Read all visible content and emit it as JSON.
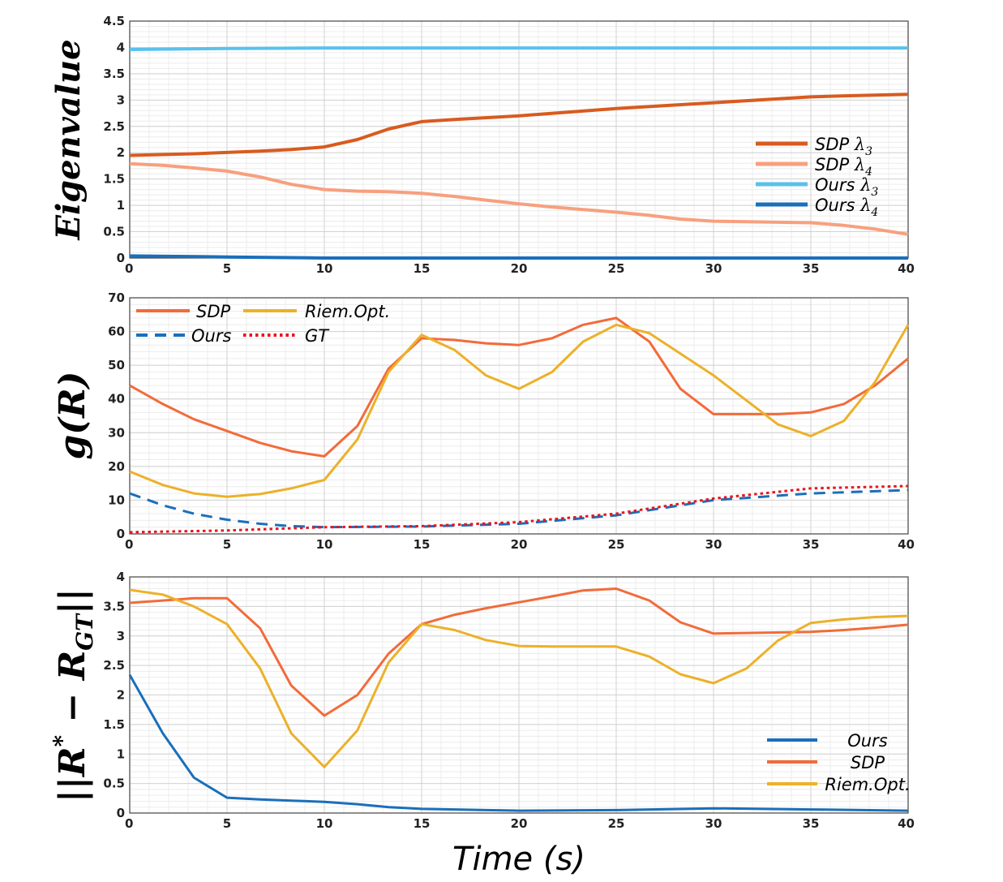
{
  "chart_data": [
    {
      "type": "line",
      "ylabel": "Eigenvalue",
      "xlim": [
        0,
        40
      ],
      "ylim": [
        0,
        4.5
      ],
      "xticks": [
        "0",
        "5",
        "10",
        "15",
        "20",
        "25",
        "30",
        "35",
        "40"
      ],
      "yticks": [
        "0",
        "0.5",
        "1",
        "1.5",
        "2",
        "2.5",
        "3",
        "3.5",
        "4",
        "4.5"
      ],
      "grid": true,
      "legend_position": "right",
      "series": [
        {
          "name": "SDP λ3",
          "label": "SDP",
          "lambda": "λ",
          "sub": "3",
          "color": "#d85b1f",
          "dash": "solid",
          "x": [
            0,
            3.3,
            6.7,
            8.3,
            10,
            11.7,
            13.3,
            15,
            16.7,
            20,
            25,
            30,
            35,
            36.7,
            40
          ],
          "y": [
            1.95,
            1.98,
            2.03,
            2.06,
            2.11,
            2.25,
            2.45,
            2.59,
            2.63,
            2.7,
            2.84,
            2.95,
            3.06,
            3.08,
            3.11
          ]
        },
        {
          "name": "SDP λ4",
          "label": "SDP",
          "lambda": "λ",
          "sub": "4",
          "color": "#f7a07e",
          "dash": "solid",
          "x": [
            0,
            1.7,
            3.3,
            5,
            6.7,
            8.3,
            10,
            11.7,
            13.3,
            15,
            16.7,
            18.3,
            20,
            21.7,
            23.3,
            25,
            26.7,
            28.3,
            30,
            31.7,
            33.3,
            35,
            36.7,
            38.3,
            40
          ],
          "y": [
            1.79,
            1.76,
            1.71,
            1.65,
            1.54,
            1.4,
            1.3,
            1.27,
            1.26,
            1.23,
            1.17,
            1.1,
            1.03,
            0.97,
            0.92,
            0.87,
            0.81,
            0.74,
            0.7,
            0.69,
            0.68,
            0.67,
            0.62,
            0.55,
            0.45
          ]
        },
        {
          "name": "Ours λ3",
          "label": "Ours",
          "lambda": "λ",
          "sub": "3",
          "color": "#5ac1eb",
          "dash": "solid",
          "x": [
            0,
            5,
            10,
            40
          ],
          "y": [
            3.96,
            3.98,
            3.99,
            3.99
          ]
        },
        {
          "name": "Ours λ4",
          "label": "Ours",
          "lambda": "λ",
          "sub": "4",
          "color": "#1a6fbb",
          "dash": "solid",
          "x": [
            0,
            5,
            10,
            40
          ],
          "y": [
            0.04,
            0.02,
            0.0,
            0.0
          ]
        }
      ]
    },
    {
      "type": "line",
      "ylabel": "g(R)",
      "xlim": [
        0,
        40
      ],
      "ylim": [
        0,
        70
      ],
      "xticks": [
        "0",
        "5",
        "10",
        "15",
        "20",
        "25",
        "30",
        "35",
        "40"
      ],
      "yticks": [
        "0",
        "10",
        "20",
        "30",
        "40",
        "50",
        "60",
        "70"
      ],
      "grid": true,
      "legend_position": "top-left",
      "series": [
        {
          "name": "SDP",
          "color": "#f26b3a",
          "dash": "solid",
          "x": [
            0,
            1.7,
            3.3,
            5,
            6.7,
            8.3,
            10,
            11.7,
            13.3,
            15,
            16.7,
            18.3,
            20,
            21.7,
            23.3,
            25,
            26.7,
            28.3,
            30,
            31.7,
            33.3,
            35,
            36.7,
            38.3,
            40
          ],
          "y": [
            44,
            38.5,
            34,
            30.5,
            27,
            24.5,
            23,
            32,
            49,
            58,
            57.5,
            56.5,
            56,
            58,
            62,
            64,
            57,
            43,
            35.5,
            35.5,
            35.5,
            36,
            38.5,
            44,
            52
          ]
        },
        {
          "name": "Riem.Opt.",
          "color": "#ecb12a",
          "dash": "solid",
          "x": [
            0,
            1.7,
            3.3,
            5,
            6.7,
            8.3,
            10,
            11.7,
            13.3,
            15,
            16.7,
            18.3,
            20,
            21.7,
            23.3,
            25,
            26.7,
            30,
            33.3,
            35,
            36.7,
            38.3,
            40
          ],
          "y": [
            18.5,
            14.5,
            12,
            11,
            11.8,
            13.5,
            16,
            28,
            48,
            59,
            54.5,
            47,
            43,
            48,
            57,
            62,
            59.5,
            47,
            32.5,
            29,
            33.5,
            45,
            62
          ]
        },
        {
          "name": "Ours",
          "color": "#1a6fbb",
          "dash": "dashed",
          "x": [
            0,
            1.7,
            3.3,
            5,
            6.7,
            8.3,
            10,
            15,
            20,
            25,
            30,
            35,
            40
          ],
          "y": [
            12,
            8.5,
            6,
            4.2,
            3,
            2.3,
            2,
            2.2,
            3,
            5.5,
            10,
            12,
            13
          ]
        },
        {
          "name": "GT",
          "color": "#e8141e",
          "dash": "dotted",
          "x": [
            0,
            5,
            10,
            15,
            20,
            25,
            30,
            35,
            40
          ],
          "y": [
            0.5,
            1,
            2,
            2.3,
            3.5,
            6,
            10.5,
            13.5,
            14.2
          ]
        }
      ]
    },
    {
      "type": "line",
      "ylabel": "||R* − R_GT||",
      "ylabel_parts": {
        "bar": "||",
        "r": "R",
        "star": "*",
        "minus": " − ",
        "sub": "GT"
      },
      "xlabel": "Time (s)",
      "xlim": [
        0,
        40
      ],
      "ylim": [
        0,
        4
      ],
      "xticks": [
        "0",
        "5",
        "10",
        "15",
        "20",
        "25",
        "30",
        "35",
        "40"
      ],
      "yticks": [
        "0",
        "0.5",
        "1",
        "1.5",
        "2",
        "2.5",
        "3",
        "3.5",
        "4"
      ],
      "grid": true,
      "legend_position": "bottom-right",
      "series": [
        {
          "name": "Ours",
          "color": "#1a6fbb",
          "dash": "solid",
          "x": [
            0,
            1.7,
            3.3,
            5,
            6.7,
            8.3,
            10,
            11.7,
            13.3,
            15,
            16.7,
            18.3,
            20,
            25,
            30,
            35,
            40
          ],
          "y": [
            2.34,
            1.35,
            0.6,
            0.26,
            0.23,
            0.21,
            0.19,
            0.15,
            0.1,
            0.07,
            0.06,
            0.05,
            0.04,
            0.05,
            0.08,
            0.06,
            0.04
          ]
        },
        {
          "name": "SDP",
          "color": "#f26b3a",
          "dash": "solid",
          "x": [
            0,
            1.7,
            3.3,
            5,
            6.7,
            8.3,
            10,
            11.7,
            13.3,
            15,
            16.7,
            18.3,
            20,
            21.7,
            23.3,
            25,
            26.7,
            28.3,
            30,
            35,
            36.7,
            38.3,
            40
          ],
          "y": [
            3.56,
            3.6,
            3.64,
            3.64,
            3.13,
            2.16,
            1.65,
            2.0,
            2.7,
            3.2,
            3.36,
            3.47,
            3.57,
            3.67,
            3.77,
            3.8,
            3.6,
            3.23,
            3.04,
            3.07,
            3.1,
            3.14,
            3.19
          ]
        },
        {
          "name": "Riem.Opt.",
          "color": "#ecb12a",
          "dash": "solid",
          "x": [
            0,
            1.7,
            3.3,
            5,
            6.7,
            8.3,
            10,
            11.7,
            13.3,
            15,
            16.7,
            18.3,
            20,
            21.7,
            23.3,
            25,
            26.7,
            28.3,
            30,
            31.7,
            33.3,
            35,
            36.7,
            38.3,
            40
          ],
          "y": [
            3.78,
            3.7,
            3.5,
            3.2,
            2.45,
            1.35,
            0.78,
            1.4,
            2.55,
            3.2,
            3.1,
            2.93,
            2.83,
            2.82,
            2.82,
            2.82,
            2.65,
            2.35,
            2.2,
            2.45,
            2.92,
            3.22,
            3.28,
            3.32,
            3.34
          ]
        }
      ]
    }
  ]
}
